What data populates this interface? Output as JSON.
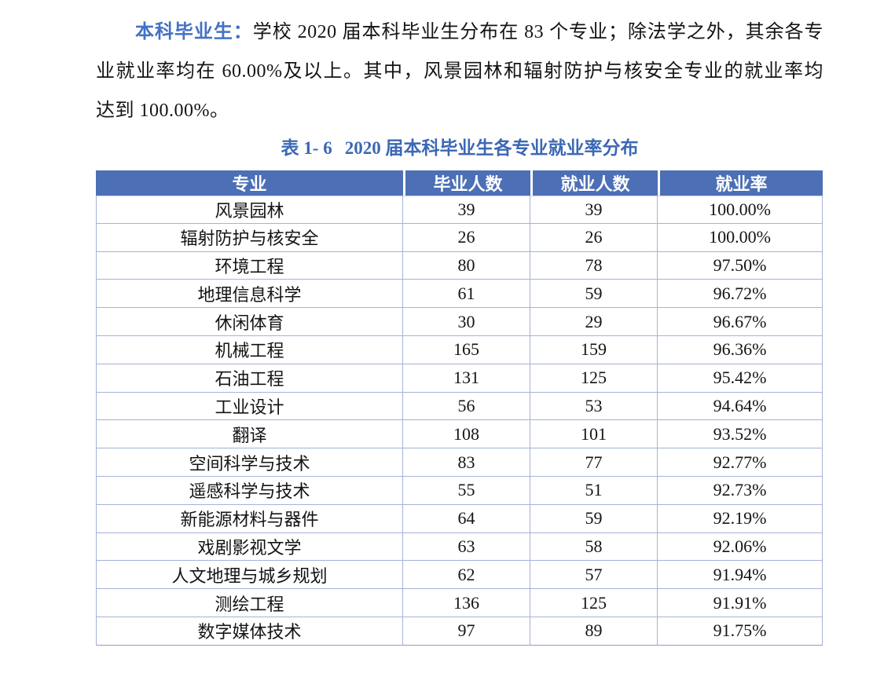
{
  "paragraph": {
    "lead": "本科毕业生：",
    "lines": [
      "学校 2020 届本科毕业生分布在 83 个专业；除法学之外，其余各专",
      "业就业率均在 60.00%及以上。其中，风景园林和辐射防护与核安全专业的就业率均",
      "达到 100.00%。"
    ]
  },
  "caption": {
    "label": "表 1- 6",
    "title": "2020 届本科毕业生各专业就业率分布"
  },
  "table": {
    "headers": [
      "专业",
      "毕业人数",
      "就业人数",
      "就业率"
    ],
    "rows": [
      [
        "风景园林",
        "39",
        "39",
        "100.00%"
      ],
      [
        "辐射防护与核安全",
        "26",
        "26",
        "100.00%"
      ],
      [
        "环境工程",
        "80",
        "78",
        "97.50%"
      ],
      [
        "地理信息科学",
        "61",
        "59",
        "96.72%"
      ],
      [
        "休闲体育",
        "30",
        "29",
        "96.67%"
      ],
      [
        "机械工程",
        "165",
        "159",
        "96.36%"
      ],
      [
        "石油工程",
        "131",
        "125",
        "95.42%"
      ],
      [
        "工业设计",
        "56",
        "53",
        "94.64%"
      ],
      [
        "翻译",
        "108",
        "101",
        "93.52%"
      ],
      [
        "空间科学与技术",
        "83",
        "77",
        "92.77%"
      ],
      [
        "遥感科学与技术",
        "55",
        "51",
        "92.73%"
      ],
      [
        "新能源材料与器件",
        "64",
        "59",
        "92.19%"
      ],
      [
        "戏剧影视文学",
        "63",
        "58",
        "92.06%"
      ],
      [
        "人文地理与城乡规划",
        "62",
        "57",
        "91.94%"
      ],
      [
        "测绘工程",
        "136",
        "125",
        "91.91%"
      ],
      [
        "数字媒体技术",
        "97",
        "89",
        "91.75%"
      ]
    ]
  },
  "colors": {
    "accent_blue": "#4472C4",
    "caption_blue": "#3C68B4",
    "header_bg": "#4C6FB5",
    "header_text": "#FFFFFF",
    "grid_border": "#A6B2D8",
    "body_text": "#141414",
    "page_background": "#FFFFFF"
  }
}
